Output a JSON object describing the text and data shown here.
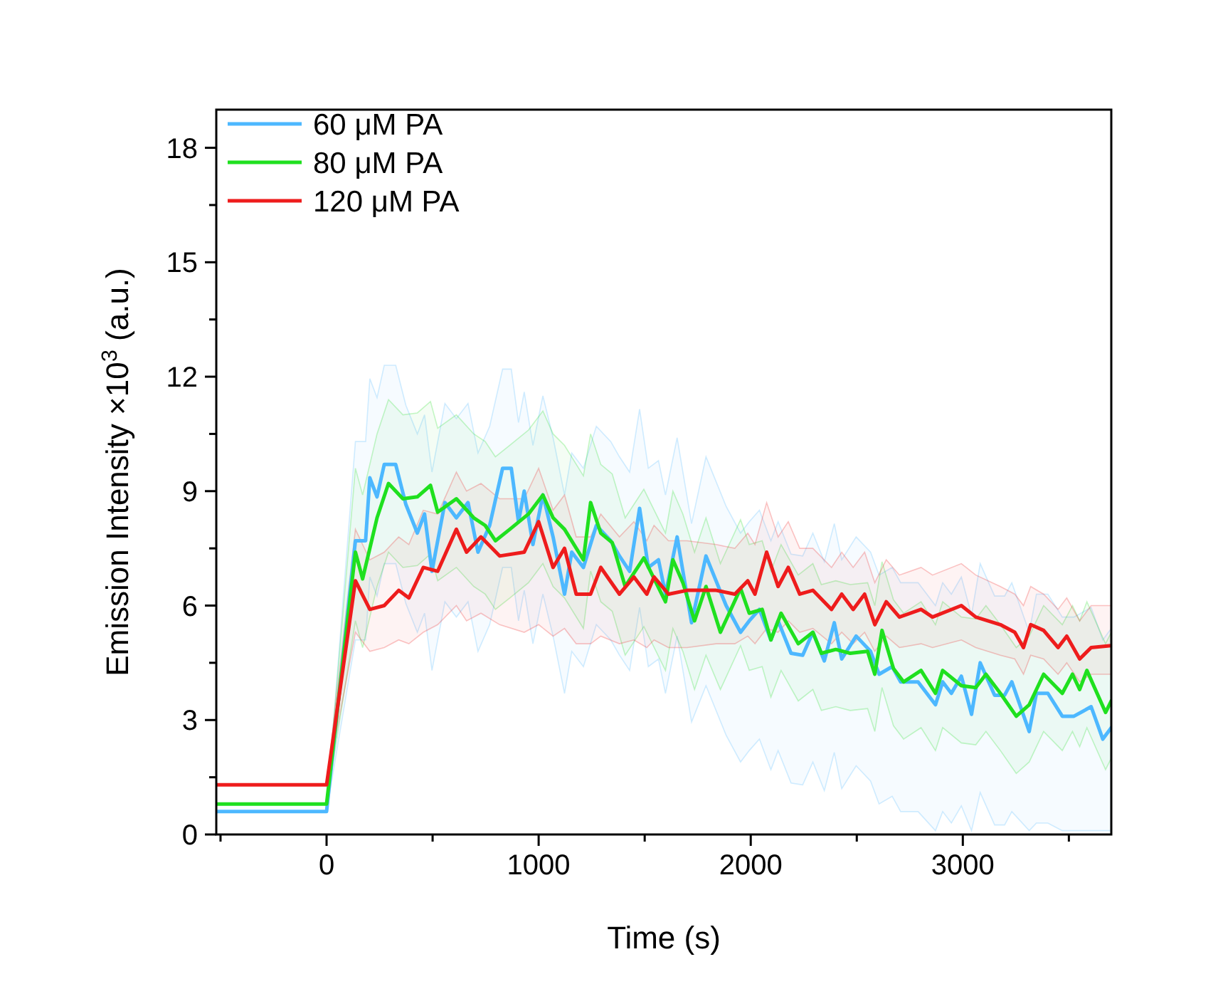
{
  "chart_data": {
    "type": "line",
    "xlabel": "Time (s)",
    "ylabel": "Emission Intensity ×10$^{3}$ (a.u.)",
    "xlim": [
      -520,
      3700
    ],
    "ylim": [
      0,
      19
    ],
    "xticks": [
      {
        "value": -500,
        "label": null
      },
      0,
      {
        "value": 500,
        "label": null
      },
      1000,
      {
        "value": 1500,
        "label": null
      },
      2000,
      {
        "value": 2500,
        "label": null
      },
      3000,
      {
        "value": 3500,
        "label": null
      }
    ],
    "yticks": [
      0,
      {
        "value": 1.5,
        "label": null
      },
      3,
      {
        "value": 4.5,
        "label": null
      },
      6,
      {
        "value": 7.5,
        "label": null
      },
      9,
      {
        "value": 10.5,
        "label": null
      },
      12,
      {
        "value": 13.5,
        "label": null
      },
      15,
      {
        "value": 16.5,
        "label": null
      },
      18
    ],
    "grid": false,
    "legend": "top left",
    "marker": "none",
    "line_style": "solid",
    "series": [
      {
        "name": "60 μM PA",
        "color": "#4db8ff",
        "x": [
          -520,
          0,
          136,
          184,
          204,
          238,
          272,
          326,
          374,
          428,
          462,
          497,
          558,
          612,
          667,
          714,
          769,
          830,
          871,
          905,
          932,
          973,
          1020,
          1068,
          1122,
          1156,
          1211,
          1272,
          1340,
          1381,
          1429,
          1476,
          1517,
          1565,
          1598,
          1653,
          1721,
          1789,
          1884,
          1952,
          1993,
          2041,
          2095,
          2129,
          2190,
          2245,
          2293,
          2347,
          2394,
          2429,
          2497,
          2565,
          2605,
          2667,
          2707,
          2789,
          2871,
          2905,
          2946,
          2993,
          3041,
          3082,
          3150,
          3197,
          3231,
          3313,
          3347,
          3401,
          3469,
          3524,
          3605,
          3660,
          3700
        ],
        "values": [
          0.6,
          0.6,
          7.7,
          7.7,
          9.35,
          8.85,
          9.7,
          9.7,
          8.65,
          7.9,
          8.4,
          6.9,
          8.7,
          8.3,
          8.7,
          7.4,
          8.1,
          9.6,
          9.6,
          8.2,
          9.0,
          7.6,
          8.9,
          7.8,
          6.3,
          7.4,
          7.0,
          8.1,
          7.7,
          7.3,
          6.9,
          8.55,
          7.0,
          7.2,
          6.3,
          7.8,
          5.55,
          7.3,
          6.0,
          5.3,
          5.6,
          5.9,
          5.1,
          5.6,
          4.75,
          4.7,
          5.3,
          4.55,
          5.55,
          4.6,
          5.2,
          4.8,
          4.2,
          4.4,
          4.0,
          4.0,
          3.4,
          4.0,
          3.7,
          4.15,
          3.15,
          4.5,
          3.65,
          3.65,
          4.0,
          2.7,
          3.7,
          3.7,
          3.1,
          3.1,
          3.35,
          2.5,
          2.8
        ],
        "lower": [
          0.6,
          0.6,
          5.1,
          5.1,
          6.75,
          6.25,
          7.1,
          7.1,
          6.05,
          5.3,
          5.8,
          4.3,
          6.1,
          5.7,
          6.1,
          4.8,
          5.5,
          7.0,
          7.0,
          5.6,
          6.4,
          5.0,
          6.3,
          5.2,
          3.7,
          4.8,
          4.4,
          5.5,
          5.1,
          4.7,
          4.3,
          5.95,
          4.4,
          4.6,
          3.7,
          5.2,
          2.95,
          3.9,
          2.6,
          1.9,
          2.2,
          2.5,
          1.7,
          2.2,
          1.35,
          1.3,
          1.9,
          1.15,
          2.15,
          1.2,
          1.8,
          1.4,
          0.8,
          1.0,
          0.6,
          0.6,
          0.1,
          0.6,
          0.3,
          0.75,
          0.1,
          1.1,
          0.25,
          0.25,
          0.6,
          0.1,
          0.3,
          0.3,
          0.1,
          0.1,
          0.1,
          0.1,
          0.1
        ],
        "upper": [
          0.6,
          0.6,
          10.3,
          10.3,
          11.95,
          11.45,
          12.3,
          12.3,
          11.25,
          10.5,
          11.0,
          9.5,
          11.3,
          10.9,
          11.3,
          10.0,
          10.7,
          12.2,
          12.2,
          10.8,
          11.6,
          10.2,
          11.5,
          10.4,
          8.9,
          10.0,
          9.6,
          10.7,
          10.3,
          9.9,
          9.5,
          11.15,
          9.6,
          9.8,
          8.9,
          10.4,
          8.15,
          9.9,
          8.6,
          7.9,
          8.2,
          8.5,
          7.7,
          8.2,
          7.35,
          7.3,
          7.9,
          7.15,
          8.15,
          7.2,
          7.8,
          7.4,
          6.8,
          7.0,
          6.6,
          6.6,
          6.0,
          6.6,
          6.3,
          6.75,
          5.75,
          7.1,
          6.25,
          6.25,
          6.6,
          5.3,
          6.3,
          6.3,
          5.7,
          5.7,
          5.95,
          5.1,
          5.4
        ]
      },
      {
        "name": "80 μM PA",
        "color": "#1fe01f",
        "x": [
          -520,
          0,
          136,
          170,
          238,
          292,
          360,
          428,
          490,
          524,
          612,
          694,
          748,
          796,
          864,
          952,
          1020,
          1068,
          1122,
          1211,
          1245,
          1293,
          1347,
          1408,
          1496,
          1598,
          1633,
          1680,
          1735,
          1789,
          1857,
          1952,
          1993,
          2054,
          2095,
          2143,
          2224,
          2293,
          2333,
          2401,
          2469,
          2551,
          2585,
          2619,
          2673,
          2721,
          2803,
          2871,
          2905,
          2993,
          3061,
          3109,
          3177,
          3252,
          3313,
          3381,
          3469,
          3517,
          3551,
          3585,
          3673,
          3700
        ],
        "values": [
          0.8,
          0.8,
          7.4,
          6.7,
          8.3,
          9.2,
          8.8,
          8.85,
          9.15,
          8.45,
          8.8,
          8.3,
          8.1,
          7.7,
          8.0,
          8.4,
          8.9,
          8.3,
          8.0,
          7.2,
          8.7,
          7.9,
          7.65,
          6.5,
          7.25,
          6.1,
          7.2,
          6.6,
          5.6,
          6.5,
          5.3,
          6.45,
          5.8,
          5.9,
          5.1,
          5.8,
          5.0,
          5.3,
          4.75,
          4.85,
          4.75,
          4.8,
          4.2,
          5.35,
          4.35,
          4.0,
          4.3,
          3.7,
          4.3,
          3.9,
          3.85,
          4.2,
          3.7,
          3.1,
          3.4,
          4.2,
          3.7,
          4.2,
          3.8,
          4.3,
          3.2,
          3.5
        ],
        "lower": [
          0.8,
          0.8,
          5.6,
          4.9,
          6.5,
          7.4,
          7.0,
          7.05,
          7.35,
          6.65,
          7.0,
          6.5,
          6.3,
          5.9,
          6.2,
          6.6,
          7.1,
          6.5,
          6.2,
          5.4,
          6.9,
          6.1,
          5.85,
          4.7,
          5.45,
          4.3,
          5.4,
          4.8,
          3.8,
          4.7,
          3.8,
          4.95,
          4.3,
          4.4,
          3.6,
          4.3,
          3.5,
          3.8,
          3.25,
          3.35,
          3.25,
          3.3,
          2.7,
          3.85,
          2.85,
          2.5,
          2.8,
          2.2,
          2.8,
          2.4,
          2.35,
          2.7,
          2.2,
          1.6,
          1.9,
          2.7,
          2.2,
          2.7,
          2.3,
          2.8,
          1.7,
          2.0
        ],
        "upper": [
          0.8,
          0.8,
          9.6,
          8.9,
          10.5,
          11.4,
          11.0,
          11.05,
          11.35,
          10.65,
          11.0,
          10.5,
          10.3,
          9.9,
          10.2,
          10.6,
          11.1,
          10.5,
          10.2,
          9.4,
          10.5,
          9.7,
          9.45,
          8.3,
          9.05,
          7.9,
          9.0,
          8.4,
          7.4,
          8.3,
          7.1,
          8.25,
          7.6,
          7.7,
          6.9,
          7.6,
          6.8,
          7.1,
          6.55,
          6.65,
          6.55,
          6.6,
          6.0,
          7.15,
          6.15,
          5.8,
          6.1,
          5.5,
          6.1,
          5.7,
          5.65,
          6.0,
          5.5,
          4.9,
          5.2,
          6.0,
          5.5,
          6.0,
          5.6,
          6.1,
          5.0,
          5.3
        ]
      },
      {
        "name": "120 μM PA",
        "color": "#ee1c1c",
        "x": [
          -520,
          0,
          136,
          204,
          272,
          340,
          388,
          456,
          524,
          612,
          660,
          728,
          816,
          932,
          1000,
          1068,
          1122,
          1177,
          1245,
          1293,
          1381,
          1449,
          1510,
          1544,
          1612,
          1700,
          1837,
          1925,
          1986,
          2020,
          2075,
          2129,
          2177,
          2231,
          2293,
          2381,
          2429,
          2483,
          2537,
          2585,
          2639,
          2701,
          2803,
          2857,
          2993,
          3061,
          3177,
          3245,
          3286,
          3320,
          3381,
          3449,
          3490,
          3551,
          3605,
          3700
        ],
        "values": [
          1.3,
          1.3,
          6.65,
          5.9,
          6.0,
          6.4,
          6.2,
          7.0,
          6.9,
          8.0,
          7.4,
          7.8,
          7.3,
          7.4,
          8.2,
          7.0,
          7.5,
          6.3,
          6.3,
          7.0,
          6.3,
          6.75,
          6.3,
          6.75,
          6.3,
          6.4,
          6.4,
          6.3,
          6.65,
          6.3,
          7.4,
          6.5,
          7.0,
          6.3,
          6.4,
          5.9,
          6.3,
          5.9,
          6.3,
          5.5,
          6.1,
          5.7,
          5.9,
          5.7,
          6.0,
          5.7,
          5.5,
          5.3,
          4.9,
          5.5,
          5.35,
          4.9,
          5.2,
          4.6,
          4.9,
          4.95
        ],
        "lower": [
          1.3,
          1.3,
          5.3,
          4.8,
          4.9,
          5.1,
          5.0,
          5.3,
          5.5,
          6.0,
          5.6,
          5.8,
          5.5,
          5.3,
          5.5,
          5.2,
          5.4,
          5.0,
          5.0,
          5.2,
          5.0,
          5.1,
          4.9,
          5.1,
          4.9,
          4.9,
          5.0,
          5.0,
          5.2,
          5.0,
          5.4,
          5.3,
          5.6,
          5.3,
          5.4,
          5.0,
          5.3,
          5.0,
          5.3,
          4.8,
          5.2,
          4.9,
          5.0,
          4.9,
          5.1,
          4.9,
          4.7,
          4.6,
          4.2,
          4.7,
          4.6,
          4.2,
          4.5,
          4.0,
          4.2,
          4.2
        ],
        "upper": [
          1.3,
          1.3,
          8.0,
          7.2,
          7.4,
          7.8,
          7.6,
          8.5,
          8.4,
          9.5,
          9.0,
          9.2,
          8.8,
          8.8,
          9.6,
          8.5,
          8.9,
          7.8,
          7.8,
          8.4,
          7.8,
          8.2,
          7.7,
          8.1,
          7.7,
          7.7,
          7.6,
          7.5,
          7.9,
          7.6,
          8.7,
          7.8,
          8.2,
          7.5,
          7.5,
          7.0,
          7.4,
          7.0,
          7.4,
          6.6,
          7.2,
          6.8,
          7.0,
          6.8,
          7.1,
          6.8,
          6.5,
          6.3,
          6.0,
          6.5,
          6.3,
          5.9,
          6.2,
          5.6,
          6.0,
          6.0
        ]
      }
    ]
  }
}
